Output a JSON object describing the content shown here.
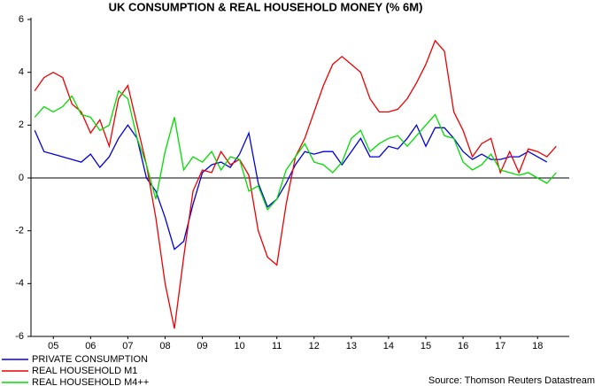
{
  "chart_data": {
    "type": "line",
    "title": "UK CONSUMPTION & REAL HOUSEHOLD MONEY (% 6M)",
    "source": "Source: Thomson Reuters Datastream",
    "x": [
      2005.0,
      2005.25,
      2005.5,
      2005.75,
      2006.0,
      2006.25,
      2006.5,
      2006.75,
      2007.0,
      2007.25,
      2007.5,
      2007.75,
      2008.0,
      2008.25,
      2008.5,
      2008.75,
      2009.0,
      2009.25,
      2009.5,
      2009.75,
      2010.0,
      2010.25,
      2010.5,
      2010.75,
      2011.0,
      2011.25,
      2011.5,
      2011.75,
      2012.0,
      2012.25,
      2012.5,
      2012.75,
      2013.0,
      2013.25,
      2013.5,
      2013.75,
      2014.0,
      2014.25,
      2014.5,
      2014.75,
      2015.0,
      2015.25,
      2015.5,
      2015.75,
      2016.0,
      2016.25,
      2016.5,
      2016.75,
      2017.0,
      2017.25,
      2017.5,
      2017.75,
      2018.0,
      2018.25,
      2018.5,
      2018.75,
      2019.0
    ],
    "xlim": [
      2004.9,
      2019.35
    ],
    "xticks": [
      {
        "value": 2005.5,
        "label": "05"
      },
      {
        "value": 2006.5,
        "label": "06"
      },
      {
        "value": 2007.5,
        "label": "07"
      },
      {
        "value": 2008.5,
        "label": "08"
      },
      {
        "value": 2009.5,
        "label": "09"
      },
      {
        "value": 2010.5,
        "label": "10"
      },
      {
        "value": 2011.5,
        "label": "11"
      },
      {
        "value": 2012.5,
        "label": "12"
      },
      {
        "value": 2013.5,
        "label": "13"
      },
      {
        "value": 2014.5,
        "label": "14"
      },
      {
        "value": 2015.5,
        "label": "15"
      },
      {
        "value": 2016.5,
        "label": "16"
      },
      {
        "value": 2017.5,
        "label": "17"
      },
      {
        "value": 2018.5,
        "label": "18"
      }
    ],
    "ylim": [
      -6,
      6
    ],
    "yticks": [
      -6,
      -4,
      -2,
      0,
      2,
      4,
      6
    ],
    "series": [
      {
        "name": "PRIVATE CONSUMPTION",
        "color": "#0000dd",
        "values": [
          1.8,
          1.0,
          0.9,
          0.8,
          0.7,
          0.6,
          0.9,
          0.4,
          0.8,
          1.5,
          2.0,
          1.5,
          0.0,
          -0.5,
          -1.5,
          -2.7,
          -2.4,
          -1.0,
          0.2,
          0.5,
          0.6,
          0.4,
          0.9,
          1.7,
          -0.2,
          -1.1,
          -0.8,
          -0.2,
          0.5,
          1.0,
          0.9,
          1.0,
          1.0,
          0.5,
          1.0,
          1.5,
          0.8,
          0.8,
          1.2,
          1.1,
          1.5,
          2.0,
          1.2,
          1.9,
          1.9,
          1.5,
          1.0,
          0.7,
          0.9,
          0.7,
          0.7,
          0.8,
          0.8,
          1.0,
          0.8,
          0.6,
          null
        ]
      },
      {
        "name": "REAL HOUSEHOLD M1",
        "color": "#ee0000",
        "values": [
          3.3,
          3.8,
          4.0,
          3.8,
          2.8,
          2.5,
          1.7,
          2.2,
          1.2,
          3.0,
          3.5,
          2.0,
          0.5,
          -1.5,
          -4.0,
          -5.7,
          -3.0,
          -0.5,
          0.3,
          0.2,
          1.0,
          0.5,
          0.7,
          0.1,
          -2.0,
          -3.0,
          -3.3,
          -1.0,
          0.8,
          1.5,
          2.5,
          3.5,
          4.3,
          4.6,
          4.3,
          4.0,
          3.0,
          2.5,
          2.5,
          2.6,
          3.0,
          3.6,
          4.3,
          5.2,
          4.8,
          2.5,
          1.8,
          0.8,
          1.3,
          1.5,
          0.2,
          1.0,
          0.2,
          1.1,
          1.0,
          0.8,
          1.2
        ]
      },
      {
        "name": "REAL HOUSEHOLD M4++",
        "color": "#00dd00",
        "values": [
          2.3,
          2.7,
          2.5,
          2.7,
          3.1,
          2.4,
          2.3,
          1.8,
          2.0,
          3.3,
          3.0,
          1.5,
          0.5,
          -0.8,
          1.0,
          2.3,
          0.3,
          0.8,
          0.6,
          1.0,
          0.3,
          0.8,
          0.7,
          -0.5,
          -0.3,
          -1.2,
          -0.8,
          0.3,
          0.8,
          1.3,
          0.6,
          0.5,
          0.2,
          0.6,
          1.5,
          1.8,
          1.0,
          1.3,
          1.5,
          1.6,
          1.2,
          1.6,
          2.0,
          2.4,
          1.6,
          1.5,
          0.6,
          0.3,
          0.5,
          0.9,
          0.3,
          0.2,
          0.1,
          0.2,
          0.0,
          -0.2,
          0.2
        ]
      }
    ]
  }
}
